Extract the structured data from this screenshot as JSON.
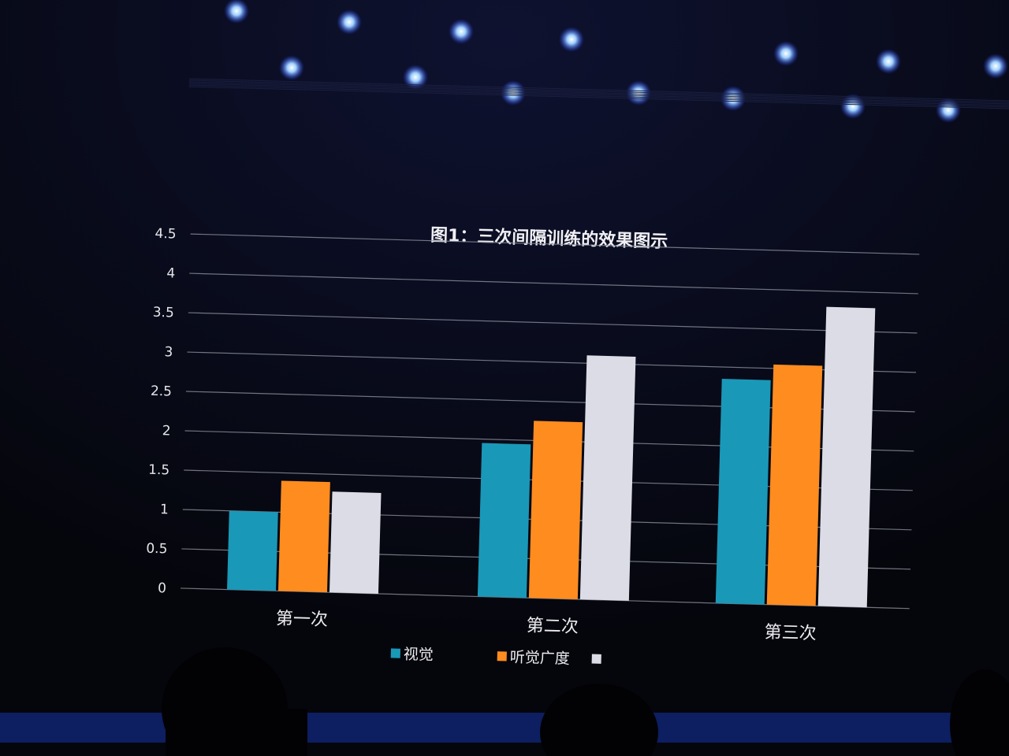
{
  "colors": {
    "series_1": "#1a98b8",
    "series_2": "#ff8c1f",
    "series_3": "#dcdce6",
    "gridline": "#8a8f9a",
    "text": "#e6e6ea"
  },
  "chart_data": {
    "type": "bar",
    "title": "图1：三次间隔训练的效果图示",
    "xlabel": "",
    "ylabel": "",
    "ylim": [
      0,
      4.5
    ],
    "yticks": [
      "0",
      "0.5",
      "1",
      "1.5",
      "2",
      "2.5",
      "3",
      "3.5",
      "4",
      "4.5"
    ],
    "grid": true,
    "legend_placement": "bottom",
    "categories": [
      "第一次",
      "第二次",
      "第三次"
    ],
    "series": [
      {
        "name": "视觉",
        "values": [
          1.0,
          1.95,
          2.85
        ]
      },
      {
        "name": "听觉广度",
        "values": [
          1.4,
          2.25,
          3.05
        ]
      },
      {
        "name": "",
        "values": [
          1.28,
          3.1,
          3.8
        ]
      }
    ]
  }
}
